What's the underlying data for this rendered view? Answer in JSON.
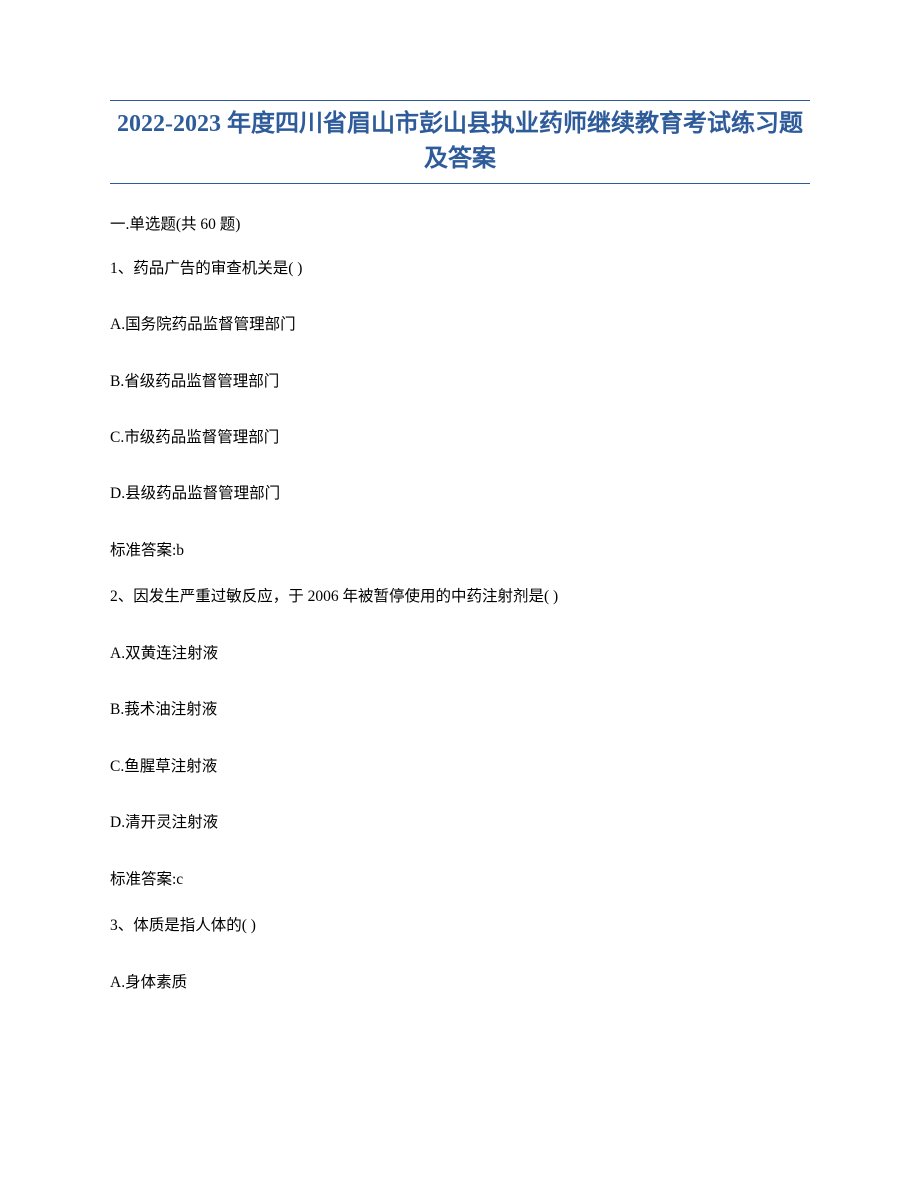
{
  "title": "2022-2023 年度四川省眉山市彭山县执业药师继续教育考试练习题及答案",
  "section_header": "一.单选题(共 60 题)",
  "questions": [
    {
      "stem": "1、药品广告的审查机关是( )",
      "options": [
        "A.国务院药品监督管理部门",
        "B.省级药品监督管理部门",
        "C.市级药品监督管理部门",
        "D.县级药品监督管理部门"
      ],
      "answer": "标准答案:b"
    },
    {
      "stem": "2、因发生严重过敏反应，于 2006 年被暂停使用的中药注射剂是( )",
      "options": [
        "A.双黄连注射液",
        "B.莪术油注射液",
        "C.鱼腥草注射液",
        "D.清开灵注射液"
      ],
      "answer": "标准答案:c"
    },
    {
      "stem": "3、体质是指人体的( )",
      "options": [
        "A.身体素质"
      ]
    }
  ]
}
